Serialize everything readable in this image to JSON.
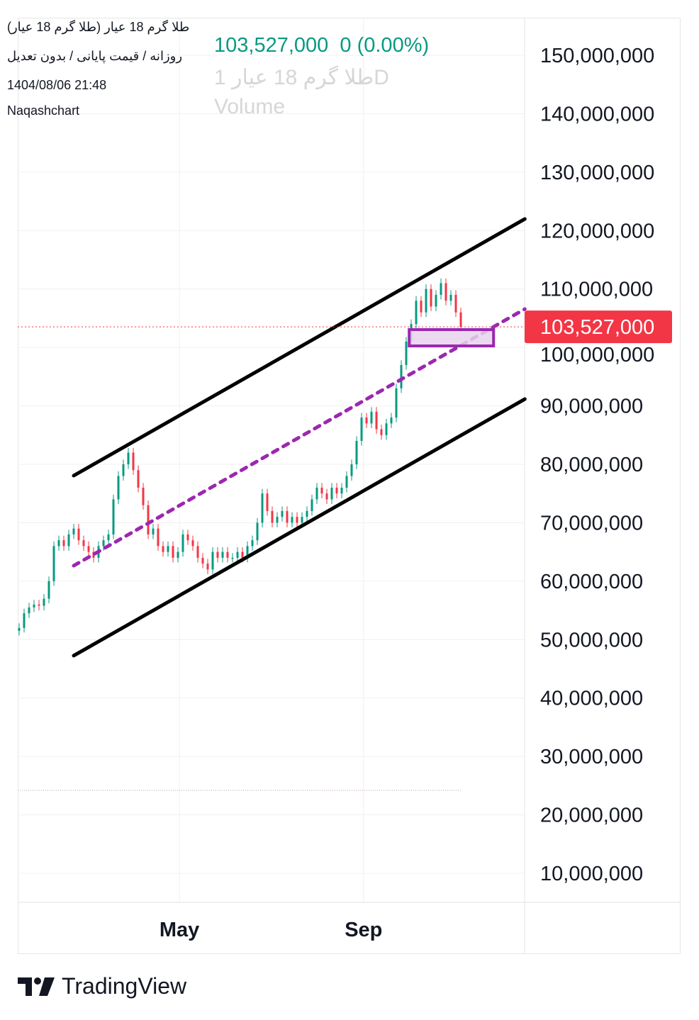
{
  "header": {
    "symbol_title": "طلا گرم 18 عیار (طلا گرم 18 عیار)",
    "chart_settings": "روزانه / قیمت پایانی / بدون تعدیل",
    "datetime": "1404/08/06 21:48",
    "author": "Naqashchart",
    "ghost_symbol": "طلا گرم 18 عیار 1D",
    "ghost_volume": "Volume",
    "last_price": "103,527,000",
    "change": "0 (0.00%)"
  },
  "branding": {
    "logo_text": "TradingView"
  },
  "colors": {
    "up": "#089981",
    "down": "#f23645",
    "channel": "#000000",
    "midline": "#9c27b0",
    "box_fill": "#e8d3ec",
    "price_label": "#f23645"
  },
  "chart_data": {
    "type": "candlestick",
    "title": "",
    "interval": "daily",
    "grid": true,
    "ylim": [
      0,
      155000000
    ],
    "y_ticks": [
      "150,000,000",
      "140,000,000",
      "130,000,000",
      "120,000,000",
      "110,000,000",
      "100,000,000",
      "90,000,000",
      "80,000,000",
      "70,000,000",
      "60,000,000",
      "50,000,000",
      "40,000,000",
      "30,000,000",
      "20,000,000",
      "10,000,000"
    ],
    "y_tick_values": [
      150,
      140,
      130,
      120,
      110,
      100,
      90,
      80,
      70,
      60,
      50,
      40,
      30,
      20,
      10
    ],
    "y_unit_multiplier": 1000000,
    "x_ticks": [
      {
        "label": "May",
        "index": 32.3
      },
      {
        "label": "Sep",
        "index": 69.4
      }
    ],
    "closes_millions": [
      52,
      54.5,
      55.5,
      56,
      55.8,
      57,
      60,
      66,
      67,
      66,
      68,
      69,
      67,
      66,
      65,
      64,
      66,
      67,
      68,
      74,
      78,
      80,
      82,
      79,
      76,
      73,
      68,
      69,
      66,
      65,
      66,
      64,
      65,
      68,
      67,
      66,
      64,
      63,
      62,
      65,
      64,
      65,
      64,
      64,
      65,
      64,
      66,
      67,
      70,
      75,
      72,
      70,
      71,
      72,
      70,
      71,
      70,
      71,
      72,
      74,
      76,
      75,
      74,
      76,
      75,
      76,
      78,
      80,
      84,
      88,
      87,
      89,
      86,
      85,
      87,
      88,
      93,
      97,
      101,
      104,
      108,
      106,
      110,
      107,
      109,
      111,
      108,
      109,
      106,
      103.527
    ],
    "last_price_label": "103,527,000",
    "last_price_millions": 103.527,
    "drawings": {
      "upper_channel": [
        [
          11,
          78.06
        ],
        [
          101.9,
          121.98
        ]
      ],
      "lower_channel": [
        [
          11,
          47.25
        ],
        [
          101.9,
          91.16
        ]
      ],
      "mid_dashed": [
        [
          11,
          62.65
        ],
        [
          101.9,
          106.57
        ]
      ],
      "box": {
        "from_index": 78.6,
        "to_index": 95.6,
        "top": 103.05,
        "bottom": 100.26
      },
      "volume_baseline_millions": 24.2
    }
  }
}
